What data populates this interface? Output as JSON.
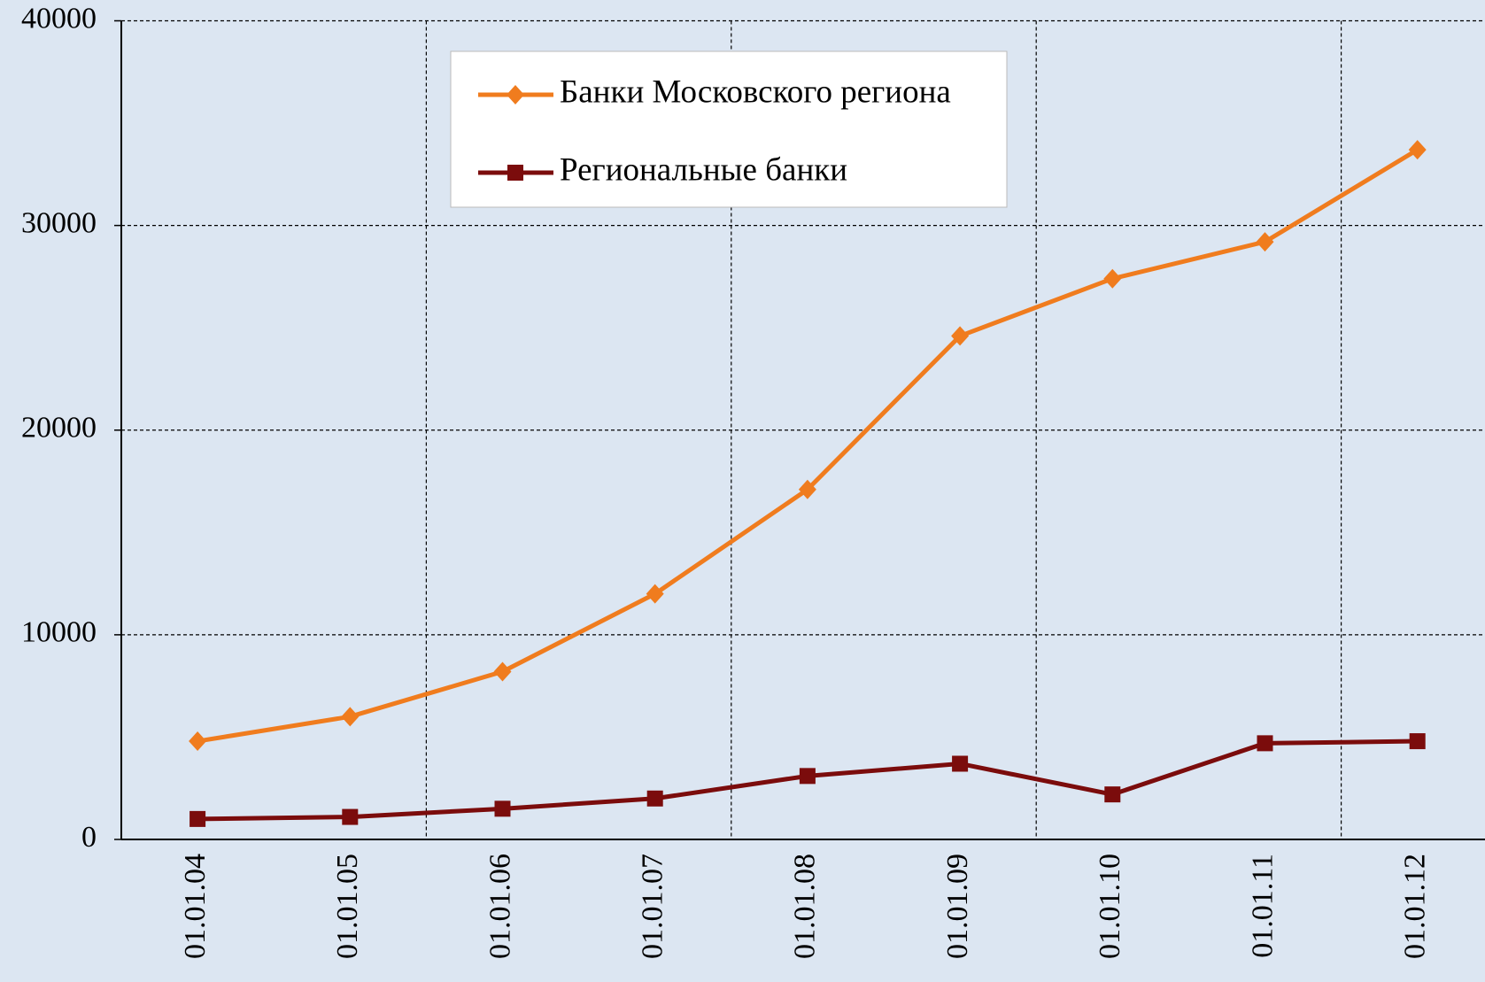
{
  "chart_data": {
    "type": "line",
    "categories": [
      "01.01.04",
      "01.01.05",
      "01.01.06",
      "01.01.07",
      "01.01.08",
      "01.01.09",
      "01.01.10",
      "01.01.11",
      "01.01.12"
    ],
    "series": [
      {
        "name": "Банки Московского региона",
        "color": "#f07c1e",
        "marker": "diamond",
        "values": [
          4800,
          6000,
          8200,
          12000,
          17100,
          24600,
          27400,
          29200,
          33700
        ]
      },
      {
        "name": "Региональные банки",
        "color": "#7b0c0c",
        "marker": "square",
        "values": [
          1000,
          1100,
          1500,
          2000,
          3100,
          3700,
          2200,
          4700,
          4800
        ]
      }
    ],
    "ylim": [
      0,
      40000
    ],
    "yticks": [
      0,
      10000,
      20000,
      30000,
      40000
    ],
    "grid": true,
    "legend": "top"
  }
}
